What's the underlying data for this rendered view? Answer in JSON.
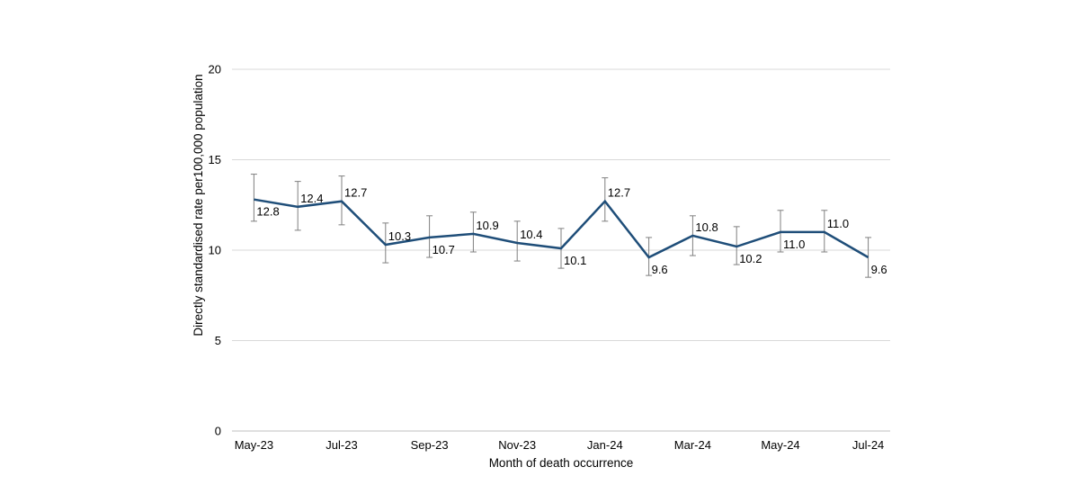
{
  "chart_data": {
    "type": "line",
    "xlabel": "Month of death occurrence",
    "ylabel": "Directly standardised rate per100,000 population",
    "ylim": [
      0,
      20
    ],
    "yticks": [
      0,
      5,
      10,
      15,
      20
    ],
    "grid": "horizontal",
    "legend": "none",
    "x": [
      "May-23",
      "Jun-23",
      "Jul-23",
      "Aug-23",
      "Sep-23",
      "Oct-23",
      "Nov-23",
      "Dec-23",
      "Jan-24",
      "Feb-24",
      "Mar-24",
      "Apr-24",
      "May-24",
      "Jun-24",
      "Jul-24"
    ],
    "xtick_labels": [
      "May-23",
      "",
      "Jul-23",
      "",
      "Sep-23",
      "",
      "Nov-23",
      "",
      "Jan-24",
      "",
      "Mar-24",
      "",
      "May-24",
      "",
      "Jul-24"
    ],
    "series": [
      {
        "values": [
          12.8,
          12.4,
          12.7,
          10.3,
          10.7,
          10.9,
          10.4,
          10.1,
          12.7,
          9.6,
          10.8,
          10.2,
          11.0,
          11.0,
          9.6
        ],
        "labels": [
          "12.8",
          "12.4",
          "12.7",
          "10.3",
          "10.7",
          "10.9",
          "10.4",
          "10.1",
          "12.7",
          "9.6",
          "10.8",
          "10.2",
          "11.0",
          "11.0",
          "9.6"
        ],
        "ci_lower": [
          11.6,
          11.1,
          11.4,
          9.3,
          9.6,
          9.9,
          9.4,
          9.0,
          11.6,
          8.6,
          9.7,
          9.2,
          9.9,
          9.9,
          8.5
        ],
        "ci_upper": [
          14.2,
          13.8,
          14.1,
          11.5,
          11.9,
          12.1,
          11.6,
          11.2,
          14.0,
          10.7,
          11.9,
          11.3,
          12.2,
          12.2,
          10.7
        ],
        "label_position": [
          "below",
          "above",
          "above",
          "above",
          "below",
          "above",
          "above",
          "below",
          "above",
          "below",
          "above",
          "below",
          "below",
          "above",
          "below"
        ]
      }
    ],
    "colors": {
      "line": "#1f4e79",
      "errorbar": "#7f7f7f",
      "grid": "#d9d9d9",
      "axis": "#bfbfbf"
    }
  }
}
